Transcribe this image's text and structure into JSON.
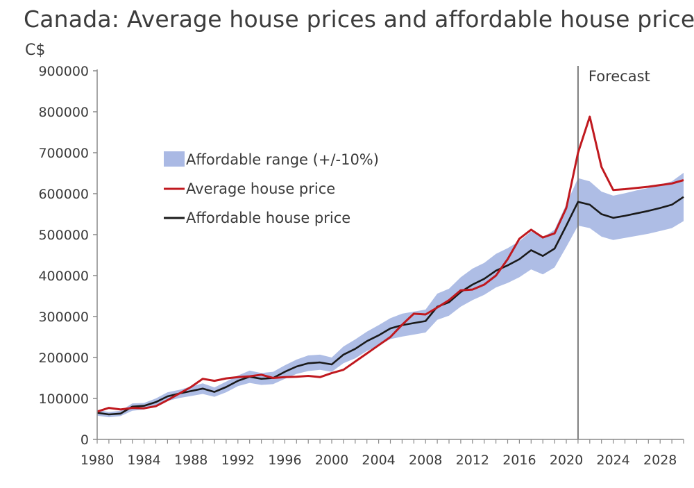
{
  "chart_data": {
    "type": "line",
    "title": "Canada: Average house prices and affordable house price",
    "ylabel": "C$",
    "xlabel": "",
    "ylim": [
      0,
      900000
    ],
    "xlim": [
      1980,
      2030
    ],
    "yticks": [
      "0",
      "100000",
      "200000",
      "300000",
      "400000",
      "500000",
      "600000",
      "700000",
      "800000",
      "900000"
    ],
    "xticks": [
      "1980",
      "1984",
      "1988",
      "1992",
      "1996",
      "2000",
      "2004",
      "2008",
      "2012",
      "2016",
      "2020",
      "2024",
      "2028"
    ],
    "forecast_start": 2021,
    "annotation": "Forecast",
    "legend_position": "upper-left",
    "colors": {
      "band": "#aab9e4",
      "average": "#c0191f",
      "affordable": "#1a1a1a",
      "forecast_line": "#7a7a7a",
      "axis": "#8a8a8a"
    },
    "band": {
      "name": "Affordable range (+/-10%)",
      "x": [
        1980,
        1981,
        1982,
        1983,
        1984,
        1985,
        1986,
        1987,
        1988,
        1989,
        1990,
        1991,
        1992,
        1993,
        1994,
        1995,
        1996,
        1997,
        1998,
        1999,
        2000,
        2001,
        2002,
        2003,
        2004,
        2005,
        2006,
        2007,
        2008,
        2009,
        2010,
        2011,
        2012,
        2013,
        2014,
        2015,
        2016,
        2017,
        2018,
        2019,
        2020,
        2021,
        2022,
        2023,
        2024,
        2025,
        2026,
        2027,
        2028,
        2029,
        2030
      ],
      "lower": [
        58000,
        54000,
        57000,
        70000,
        73000,
        83000,
        94000,
        101000,
        106000,
        111000,
        104000,
        115000,
        130000,
        138000,
        133000,
        135000,
        148000,
        160000,
        167000,
        170000,
        165000,
        186000,
        198000,
        216000,
        229000,
        245000,
        251000,
        256000,
        261000,
        292000,
        302000,
        324000,
        340000,
        353000,
        371000,
        382000,
        396000,
        415000,
        403000,
        420000,
        470000,
        522000,
        516000,
        495000,
        487000,
        492000,
        497000,
        502000,
        509000,
        516000,
        533000
      ],
      "upper": [
        72000,
        67000,
        70000,
        88000,
        89000,
        100000,
        115000,
        121000,
        129000,
        137000,
        127000,
        141000,
        156000,
        168000,
        162000,
        165000,
        181000,
        195000,
        205000,
        207000,
        200000,
        227000,
        244000,
        263000,
        279000,
        296000,
        307000,
        312000,
        317000,
        356000,
        368000,
        396000,
        417000,
        431000,
        453000,
        467000,
        484000,
        508000,
        493000,
        512000,
        574000,
        638000,
        630000,
        605000,
        595000,
        601000,
        608000,
        614000,
        622000,
        630000,
        651000
      ]
    },
    "series": [
      {
        "name": "Average house price",
        "x": [
          1980,
          1981,
          1982,
          1983,
          1984,
          1985,
          1986,
          1987,
          1988,
          1989,
          1990,
          1991,
          1992,
          1993,
          1994,
          1995,
          1996,
          1997,
          1998,
          1999,
          2000,
          2001,
          2002,
          2003,
          2004,
          2005,
          2006,
          2007,
          2008,
          2009,
          2010,
          2011,
          2012,
          2013,
          2014,
          2015,
          2016,
          2017,
          2018,
          2019,
          2020,
          2021,
          2022,
          2023,
          2024,
          2025,
          2026,
          2027,
          2028,
          2029,
          2030
        ],
        "values": [
          68000,
          77000,
          73000,
          77000,
          76000,
          81000,
          96000,
          112000,
          128000,
          148000,
          143000,
          149000,
          152000,
          154000,
          158000,
          150000,
          152000,
          153000,
          155000,
          152000,
          162000,
          170000,
          190000,
          210000,
          230000,
          250000,
          280000,
          307000,
          305000,
          322000,
          340000,
          364000,
          366000,
          378000,
          400000,
          440000,
          490000,
          512000,
          493000,
          503000,
          565000,
          700000,
          788000,
          665000,
          609000,
          611000,
          614000,
          617000,
          621000,
          625000,
          633000
        ]
      },
      {
        "name": "Affordable house price",
        "x": [
          1980,
          1981,
          1982,
          1983,
          1984,
          1985,
          1986,
          1987,
          1988,
          1989,
          1990,
          1991,
          1992,
          1993,
          1994,
          1995,
          1996,
          1997,
          1998,
          1999,
          2000,
          2001,
          2002,
          2003,
          2004,
          2005,
          2006,
          2007,
          2008,
          2009,
          2010,
          2011,
          2012,
          2013,
          2014,
          2015,
          2016,
          2017,
          2018,
          2019,
          2020,
          2021,
          2022,
          2023,
          2024,
          2025,
          2026,
          2027,
          2028,
          2029,
          2030
        ],
        "values": [
          65000,
          61000,
          63000,
          80000,
          82000,
          91000,
          105000,
          112000,
          118000,
          124000,
          116000,
          128000,
          143000,
          153000,
          148000,
          150000,
          165000,
          178000,
          186000,
          188000,
          183000,
          207000,
          221000,
          240000,
          254000,
          271000,
          279000,
          284000,
          289000,
          324000,
          335000,
          360000,
          378000,
          392000,
          412000,
          425000,
          440000,
          462000,
          448000,
          466000,
          522000,
          580000,
          573000,
          550000,
          541000,
          546000,
          552000,
          558000,
          565000,
          573000,
          592000
        ]
      }
    ]
  }
}
